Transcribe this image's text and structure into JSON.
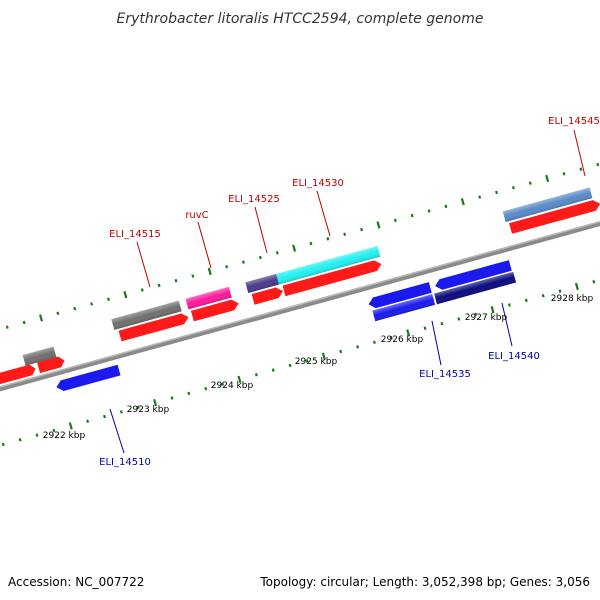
{
  "title": "Erythrobacter litoralis HTCC2594, complete genome",
  "footer": {
    "accession": "Accession: NC_007722",
    "summary": "Topology: circular; Length: 3,052,398 bp; Genes: 3,056"
  },
  "colors": {
    "backbone": "#8a8a8a",
    "tick": "#1a7a1a",
    "label_forward": "#c00000",
    "label_reverse": "#0000aa",
    "gene_red": "#ff1a1a",
    "gene_grey": "#707070",
    "gene_magenta": "#ff1a9a",
    "gene_purple": "#4a3a8a",
    "gene_cyan": "#22f0f0",
    "gene_blue": "#1a1aee",
    "gene_navy": "#0a0a80",
    "gene_steel": "#5a8ac8"
  },
  "tick_labels": [
    "2922 kbp",
    "2923 kbp",
    "2924 kbp",
    "2925 kbp",
    "2926 kbp",
    "2927 kbp",
    "2928 kbp"
  ],
  "gene_labels": {
    "top": [
      "ELI_14515",
      "ruvC",
      "ELI_14525",
      "ELI_14530",
      "ELI_14545"
    ],
    "bottom": [
      "ELI_14510",
      "ELI_14535",
      "ELI_14540"
    ]
  }
}
